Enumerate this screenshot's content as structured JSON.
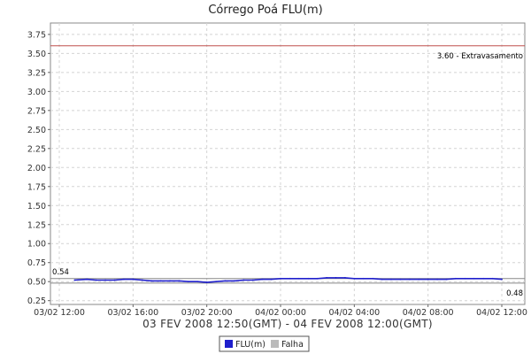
{
  "chart_data": {
    "type": "line",
    "title": "Córrego Poá FLU(m)",
    "xlabel": "03 FEV 2008 12:50(GMT) - 04 FEV 2008 12:00(GMT)",
    "ylabel": "",
    "ylim": [
      0.2,
      3.9
    ],
    "xlim": [
      "03/02 12:00",
      "04/02 12:00"
    ],
    "y_ticks": [
      "0.25",
      "0.50",
      "0.75",
      "1.00",
      "1.25",
      "1.50",
      "1.75",
      "2.00",
      "2.25",
      "2.50",
      "2.75",
      "3.00",
      "3.25",
      "3.50",
      "3.75"
    ],
    "x_ticks": [
      "03/02 12:00",
      "03/02 16:00",
      "03/02 20:00",
      "04/02 00:00",
      "04/02 04:00",
      "04/02 08:00",
      "04/02 12:00"
    ],
    "grid": true,
    "legend_placement": "bottom-center",
    "markers": [
      {
        "value": 3.6,
        "label": "3.60 - Extravasamento",
        "color": "#c0504d"
      },
      {
        "value": 0.54,
        "label": "0.54",
        "color": "#888888"
      },
      {
        "value": 0.48,
        "label": "0.48",
        "color": "#888888"
      }
    ],
    "series": [
      {
        "name": "FLU(m)",
        "color": "#1f1fcc",
        "x": [
          "03/02 12:50",
          "03/02 13:30",
          "03/02 14:00",
          "03/02 14:30",
          "03/02 15:00",
          "03/02 15:30",
          "03/02 16:00",
          "03/02 16:30",
          "03/02 17:00",
          "03/02 17:30",
          "03/02 18:00",
          "03/02 18:30",
          "03/02 19:00",
          "03/02 19:30",
          "03/02 20:00",
          "03/02 20:30",
          "03/02 21:00",
          "03/02 21:30",
          "03/02 22:00",
          "03/02 22:30",
          "03/02 23:00",
          "03/02 23:30",
          "04/02 00:00",
          "04/02 00:30",
          "04/02 01:00",
          "04/02 01:30",
          "04/02 02:00",
          "04/02 02:30",
          "04/02 03:00",
          "04/02 03:30",
          "04/02 04:00",
          "04/02 04:30",
          "04/02 05:00",
          "04/02 05:30",
          "04/02 06:00",
          "04/02 06:30",
          "04/02 07:00",
          "04/02 07:30",
          "04/02 08:00",
          "04/02 08:30",
          "04/02 09:00",
          "04/02 09:30",
          "04/02 10:00",
          "04/02 10:30",
          "04/02 11:00",
          "04/02 11:30",
          "04/02 12:00"
        ],
        "values": [
          0.52,
          0.53,
          0.52,
          0.52,
          0.52,
          0.53,
          0.53,
          0.52,
          0.51,
          0.51,
          0.51,
          0.51,
          0.5,
          0.5,
          0.49,
          0.5,
          0.51,
          0.51,
          0.52,
          0.52,
          0.53,
          0.53,
          0.54,
          0.54,
          0.54,
          0.54,
          0.54,
          0.55,
          0.55,
          0.55,
          0.54,
          0.54,
          0.54,
          0.53,
          0.53,
          0.53,
          0.53,
          0.53,
          0.53,
          0.53,
          0.53,
          0.54,
          0.54,
          0.54,
          0.54,
          0.54,
          0.53
        ]
      },
      {
        "name": "Falha",
        "color": "#bbbbbb",
        "x": [],
        "values": []
      }
    ]
  }
}
